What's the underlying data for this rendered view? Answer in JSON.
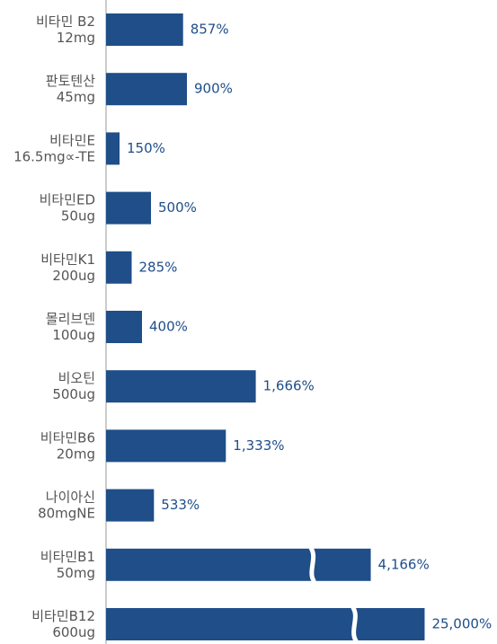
{
  "chart_data": {
    "type": "bar",
    "orientation": "horizontal",
    "color": "#1f4e89",
    "categories": [
      "비타민 B2\n12mg",
      "판토텐산\n45mg",
      "비타민E\n16.5mg∝-TE",
      "비타민ED\n50ug",
      "비타민K1\n200ug",
      "몰리브덴\n100ug",
      "비오틴\n500ug",
      "비타민B6\n20mg",
      "나이아신\n80mgNE",
      "비타민B1\n50mg",
      "비타민B12\n600ug"
    ],
    "values": [
      857,
      900,
      150,
      500,
      285,
      400,
      1666,
      1333,
      533,
      4166,
      25000
    ],
    "value_labels": [
      "857%",
      "900%",
      "150%",
      "500%",
      "285%",
      "400%",
      "1,666%",
      "1,333%",
      "533%",
      "4,166%",
      "25,000%"
    ]
  }
}
